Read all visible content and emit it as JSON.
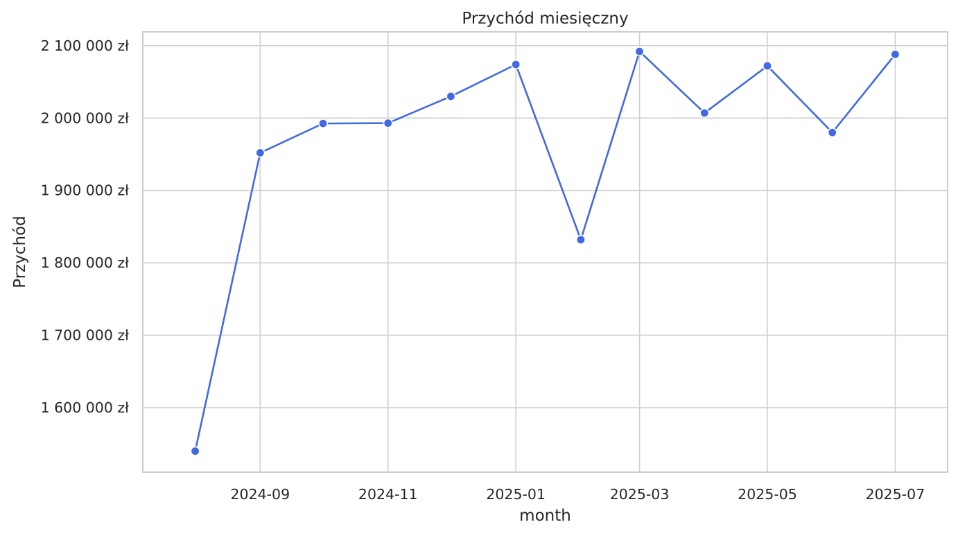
{
  "chart_data": {
    "type": "line",
    "title": "Przychód miesięczny",
    "xlabel": "month",
    "ylabel": "Przychód",
    "x": [
      "2024-08-01",
      "2024-09-01",
      "2024-10-01",
      "2024-11-01",
      "2024-12-01",
      "2025-01-01",
      "2025-02-01",
      "2025-03-01",
      "2025-04-01",
      "2025-05-01",
      "2025-06-01",
      "2025-07-01"
    ],
    "series": [
      {
        "values": [
          1540000,
          1952000,
          1992500,
          1993000,
          2030000,
          2074000,
          1832000,
          2092000,
          2007000,
          2072000,
          1980000,
          2088000
        ],
        "color": "#4169e1",
        "marker": "circle"
      }
    ],
    "x_ticks": [
      "2024-09-01",
      "2024-11-01",
      "2025-01-01",
      "2025-03-01",
      "2025-05-01",
      "2025-07-01"
    ],
    "x_tick_labels": [
      "2024-09",
      "2024-11",
      "2025-01",
      "2025-03",
      "2025-05",
      "2025-07"
    ],
    "y_ticks": [
      1600000,
      1700000,
      1800000,
      1900000,
      2000000,
      2100000
    ],
    "y_tick_labels": [
      "1 600 000 zł",
      "1 700 000 zł",
      "1 800 000 zł",
      "1 900 000 zł",
      "2 000 000 zł",
      "2 100 000 zł"
    ],
    "xlim": [
      "2024-07-07",
      "2025-07-26"
    ],
    "ylim": [
      1511000,
      2119000
    ],
    "grid": true,
    "legend": "none"
  }
}
